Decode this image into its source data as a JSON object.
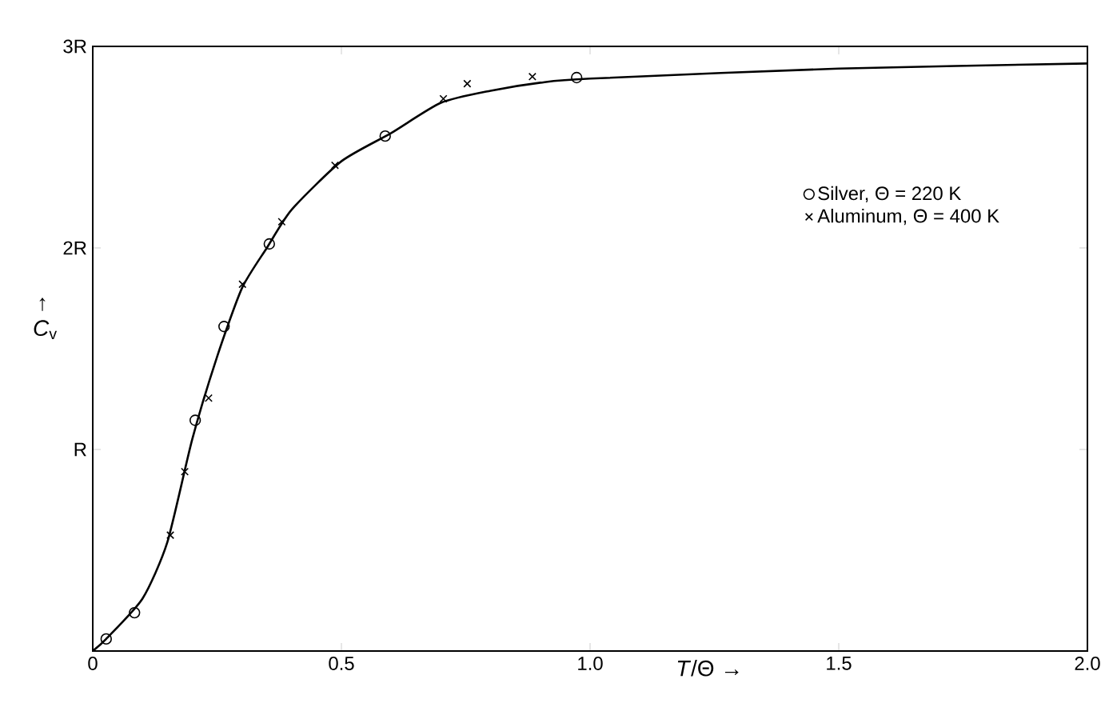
{
  "chart_data": {
    "type": "scatter",
    "xlabel": "*T*/Θ →",
    "ylabel": "↑ *C*$_{v}$",
    "xlim": [
      0,
      2
    ],
    "ylim": [
      0,
      3
    ],
    "xticks": [
      0,
      0.5,
      {
        "value": 1,
        "label": "1.0"
      },
      1.5,
      {
        "value": 2,
        "label": "2.0"
      }
    ],
    "yticks": [
      {
        "value": 1,
        "label": "R"
      },
      {
        "value": 2,
        "label": "2R"
      },
      {
        "value": 3,
        "label": "3R"
      }
    ],
    "legend": "top right",
    "grid": false,
    "series": [
      {
        "type": "line",
        "color": "#000000",
        "marker": "none",
        "line_style": "solid",
        "x": [
          0,
          0.027,
          0.1,
          0.15,
          0.2,
          0.25,
          0.3,
          0.35,
          0.4,
          0.5,
          0.6,
          0.7,
          0.8,
          0.9,
          1.0,
          1.5,
          2.0
        ],
        "values": [
          0,
          0.06,
          0.26,
          0.54,
          1.05,
          1.46,
          1.8,
          2.0,
          2.19,
          2.43,
          2.57,
          2.72,
          2.78,
          2.82,
          2.84,
          2.89,
          2.915
        ]
      },
      {
        "name": "Silver, Θ = 220 K",
        "color": "#000000",
        "marker": "circle",
        "x": [
          0.027,
          0.084,
          0.206,
          0.264,
          0.355,
          0.588,
          0.973
        ],
        "values": [
          0.06,
          0.19,
          1.145,
          1.61,
          2.02,
          2.555,
          2.845
        ]
      },
      {
        "name": "Aluminum, Θ = 400 K",
        "color": "#000000",
        "marker": "cross",
        "x": [
          0.156,
          0.185,
          0.233,
          0.301,
          0.38,
          0.487,
          0.705,
          0.753,
          0.884
        ],
        "values": [
          0.575,
          0.89,
          1.255,
          1.82,
          2.13,
          2.41,
          2.74,
          2.815,
          2.85
        ]
      }
    ]
  }
}
